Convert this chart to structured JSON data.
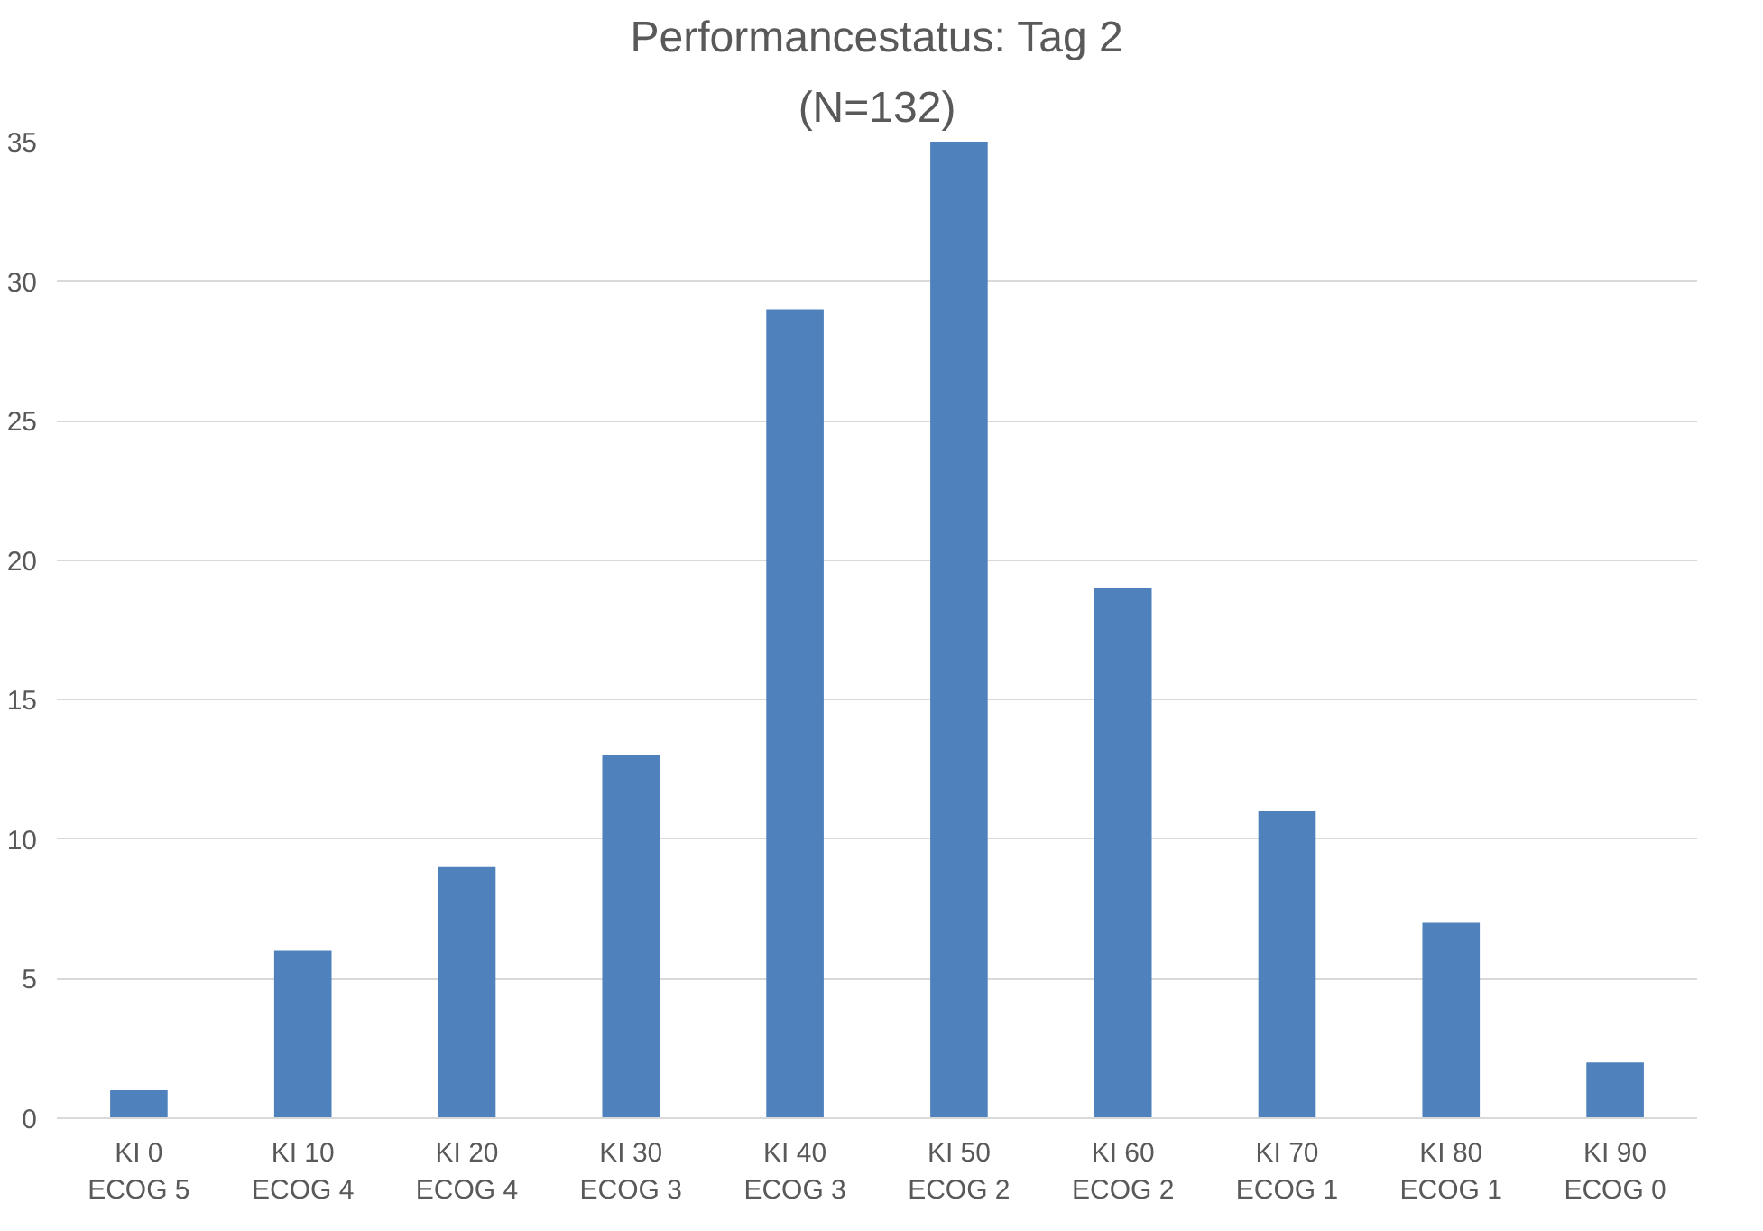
{
  "chart_data": {
    "type": "bar",
    "title": "Performancestatus: Tag 2",
    "subtitle": "(N=132)",
    "categories": [
      "KI 0\nECOG 5",
      "KI 10\nECOG 4",
      "KI 20\nECOG 4",
      "KI 30\nECOG 3",
      "KI 40\nECOG 3",
      "KI 50\nECOG 2",
      "KI 60\nECOG 2",
      "KI 70\nECOG 1",
      "KI 80\nECOG 1",
      "KI 90\nECOG 0"
    ],
    "values": [
      1,
      6,
      9,
      13,
      29,
      35,
      19,
      11,
      7,
      2
    ],
    "color": "#4f81bd",
    "ylim": [
      0,
      35
    ],
    "yticks": [
      0,
      5,
      10,
      15,
      20,
      25,
      30,
      35
    ],
    "grid": "y"
  }
}
